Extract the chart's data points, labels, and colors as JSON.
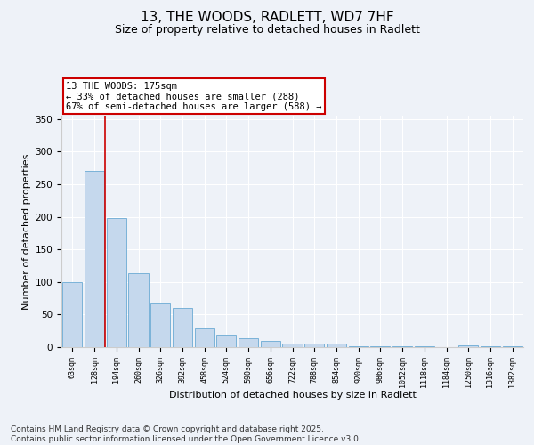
{
  "title": "13, THE WOODS, RADLETT, WD7 7HF",
  "subtitle": "Size of property relative to detached houses in Radlett",
  "xlabel": "Distribution of detached houses by size in Radlett",
  "ylabel": "Number of detached properties",
  "categories": [
    "63sqm",
    "128sqm",
    "194sqm",
    "260sqm",
    "326sqm",
    "392sqm",
    "458sqm",
    "524sqm",
    "590sqm",
    "656sqm",
    "722sqm",
    "788sqm",
    "854sqm",
    "920sqm",
    "986sqm",
    "1052sqm",
    "1118sqm",
    "1184sqm",
    "1250sqm",
    "1316sqm",
    "1382sqm"
  ],
  "values": [
    100,
    270,
    198,
    113,
    67,
    60,
    28,
    19,
    13,
    10,
    5,
    6,
    6,
    2,
    2,
    2,
    1,
    0,
    3,
    2,
    1
  ],
  "bar_color": "#c5d8ed",
  "bar_edge_color": "#6aaad4",
  "vline_color": "#cc0000",
  "vline_pos": 1.5,
  "annotation_text": "13 THE WOODS: 175sqm\n← 33% of detached houses are smaller (288)\n67% of semi-detached houses are larger (588) →",
  "annotation_box_color": "white",
  "annotation_box_edge": "#cc0000",
  "ylim": [
    0,
    355
  ],
  "yticks": [
    0,
    50,
    100,
    150,
    200,
    250,
    300,
    350
  ],
  "footer": "Contains HM Land Registry data © Crown copyright and database right 2025.\nContains public sector information licensed under the Open Government Licence v3.0.",
  "background_color": "#eef2f8",
  "plot_bg_color": "#eef2f8",
  "title_fontsize": 11,
  "subtitle_fontsize": 9,
  "annotation_fontsize": 7.5,
  "footer_fontsize": 6.5,
  "ylabel_fontsize": 8,
  "xlabel_fontsize": 8
}
